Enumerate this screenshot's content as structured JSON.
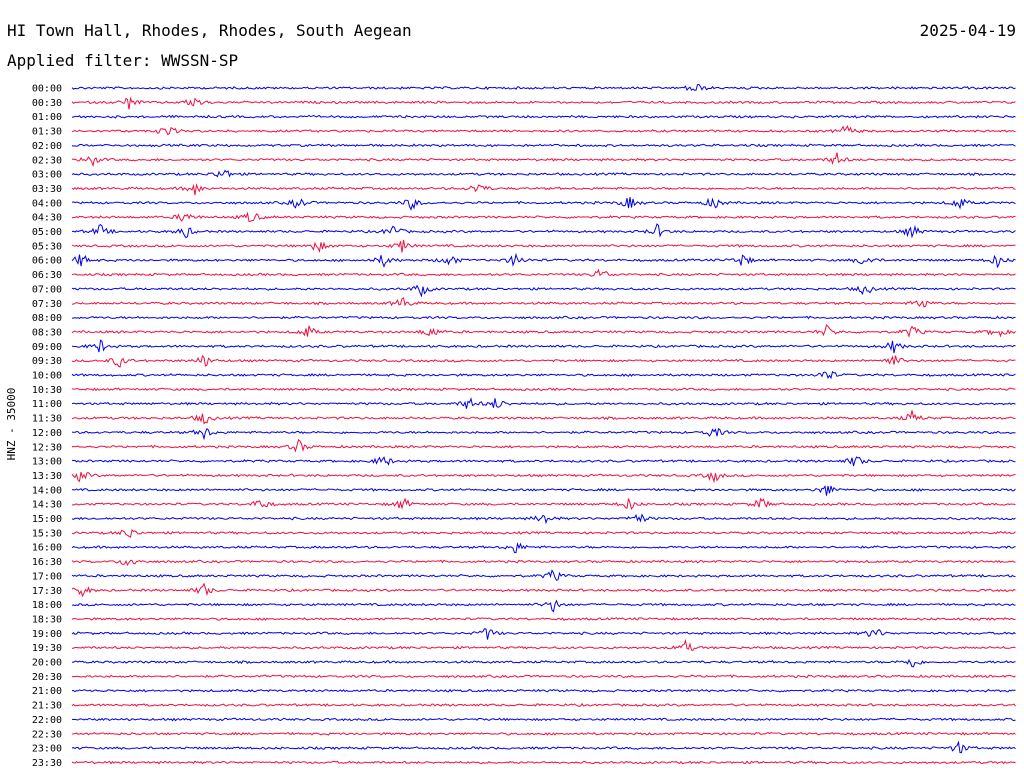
{
  "header": {
    "station": "HI Town Hall, Rhodes, Rhodes, South Aegean",
    "date": "2025-04-19",
    "filter": "Applied filter: WWSSN-SP"
  },
  "colors": {
    "trace_even": "#0000e6",
    "trace_odd": "#ee1040",
    "text": "#000000",
    "background": "#ffffff"
  },
  "chart_data": {
    "type": "line",
    "ylabel": "HNZ - 35000",
    "rows": [
      {
        "label": "00:00",
        "events": [
          0.66
        ]
      },
      {
        "label": "00:30",
        "events": [
          0.06,
          0.13
        ]
      },
      {
        "label": "01:00",
        "events": []
      },
      {
        "label": "01:30",
        "events": [
          0.1,
          0.82
        ]
      },
      {
        "label": "02:00",
        "events": []
      },
      {
        "label": "02:30",
        "events": [
          0.02,
          0.81
        ]
      },
      {
        "label": "03:00",
        "events": [
          0.16
        ]
      },
      {
        "label": "03:30",
        "events": [
          0.13,
          0.43
        ]
      },
      {
        "label": "04:00",
        "events": [
          0.24,
          0.36,
          0.59,
          0.68,
          0.94
        ]
      },
      {
        "label": "04:30",
        "events": [
          0.12,
          0.19
        ]
      },
      {
        "label": "05:00",
        "events": [
          0.03,
          0.12,
          0.34,
          0.62,
          0.89
        ]
      },
      {
        "label": "05:30",
        "events": [
          0.26,
          0.35
        ]
      },
      {
        "label": "06:00",
        "events": [
          0.01,
          0.33,
          0.4,
          0.47,
          0.71,
          0.84,
          0.98
        ]
      },
      {
        "label": "06:30",
        "events": [
          0.56
        ]
      },
      {
        "label": "07:00",
        "events": [
          0.37,
          0.84
        ]
      },
      {
        "label": "07:30",
        "events": [
          0.35,
          0.9
        ]
      },
      {
        "label": "08:00",
        "events": []
      },
      {
        "label": "08:30",
        "events": [
          0.25,
          0.38,
          0.8,
          0.89,
          0.98
        ]
      },
      {
        "label": "09:00",
        "events": [
          0.03,
          0.87
        ]
      },
      {
        "label": "09:30",
        "events": [
          0.05,
          0.14,
          0.87
        ]
      },
      {
        "label": "10:00",
        "events": [
          0.8
        ]
      },
      {
        "label": "10:30",
        "events": []
      },
      {
        "label": "11:00",
        "events": [
          0.42,
          0.45
        ]
      },
      {
        "label": "11:30",
        "events": [
          0.14,
          0.89
        ]
      },
      {
        "label": "12:00",
        "events": [
          0.14,
          0.68
        ]
      },
      {
        "label": "12:30",
        "events": [
          0.24
        ]
      },
      {
        "label": "13:00",
        "events": [
          0.33,
          0.83
        ]
      },
      {
        "label": "13:30",
        "events": [
          0.01,
          0.68
        ]
      },
      {
        "label": "14:00",
        "events": [
          0.8
        ]
      },
      {
        "label": "14:30",
        "events": [
          0.2,
          0.35,
          0.59,
          0.73
        ]
      },
      {
        "label": "15:00",
        "events": [
          0.5,
          0.6
        ]
      },
      {
        "label": "15:30",
        "events": [
          0.06
        ]
      },
      {
        "label": "16:00",
        "events": [
          0.47
        ]
      },
      {
        "label": "16:30",
        "events": [
          0.06
        ]
      },
      {
        "label": "17:00",
        "events": [
          0.51
        ]
      },
      {
        "label": "17:30",
        "events": [
          0.01,
          0.14
        ]
      },
      {
        "label": "18:00",
        "events": [
          0.51
        ]
      },
      {
        "label": "18:30",
        "events": []
      },
      {
        "label": "19:00",
        "events": [
          0.44,
          0.85
        ]
      },
      {
        "label": "19:30",
        "events": [
          0.65
        ]
      },
      {
        "label": "20:00",
        "events": [
          0.89
        ]
      },
      {
        "label": "20:30",
        "events": []
      },
      {
        "label": "21:00",
        "events": []
      },
      {
        "label": "21:30",
        "events": []
      },
      {
        "label": "22:00",
        "events": []
      },
      {
        "label": "22:30",
        "events": []
      },
      {
        "label": "23:00",
        "events": [
          0.94
        ]
      },
      {
        "label": "23:30",
        "events": []
      }
    ]
  }
}
